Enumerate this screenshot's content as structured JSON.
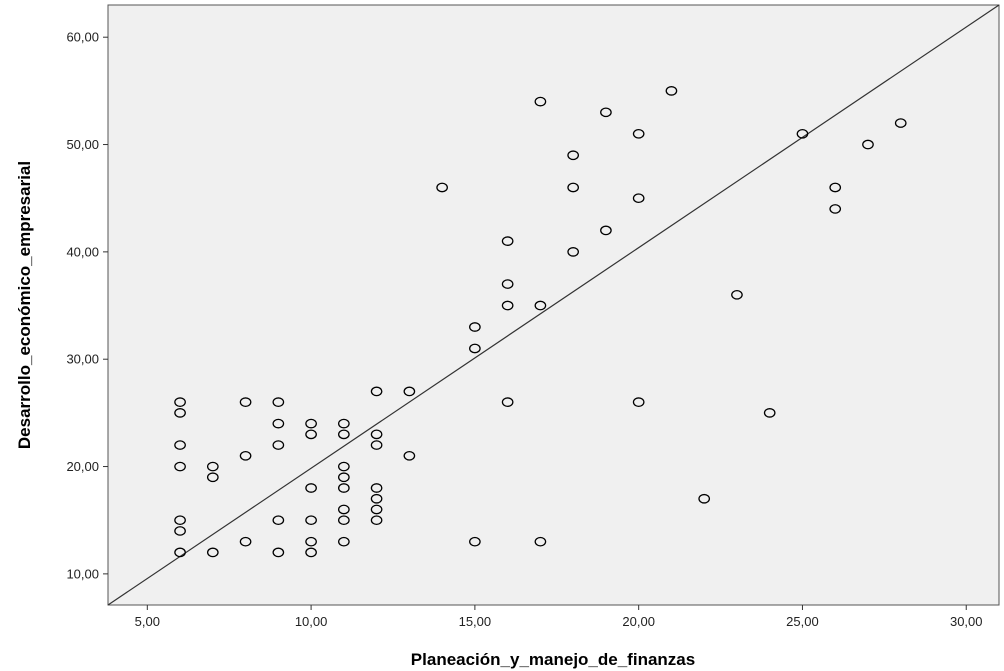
{
  "chart_data": {
    "type": "scatter",
    "title": "",
    "xlabel": "Planeación_y_manejo_de_finanzas",
    "ylabel": "Desarrollo_económico_empresarial",
    "xlim": [
      3.8,
      31.0
    ],
    "ylim": [
      7.1,
      63.0
    ],
    "x_ticks": [
      5,
      10,
      15,
      20,
      25,
      30
    ],
    "y_ticks": [
      10,
      20,
      30,
      40,
      50,
      60
    ],
    "x_tick_labels": [
      "5,00",
      "10,00",
      "15,00",
      "20,00",
      "25,00",
      "30,00"
    ],
    "y_tick_labels": [
      "10,00",
      "20,00",
      "30,00",
      "40,00",
      "50,00",
      "60,00"
    ],
    "grid": false,
    "plot_background": "#f0f0f0",
    "marker": "open-circle",
    "marker_color": "#000000",
    "fit_line": {
      "x": [
        3.8,
        31.0
      ],
      "y": [
        7.1,
        63.0
      ]
    },
    "points": [
      [
        6,
        26
      ],
      [
        6,
        25
      ],
      [
        6,
        22
      ],
      [
        6,
        20
      ],
      [
        6,
        15
      ],
      [
        6,
        14
      ],
      [
        6,
        12
      ],
      [
        7,
        20
      ],
      [
        7,
        19
      ],
      [
        7,
        12
      ],
      [
        8,
        26
      ],
      [
        8,
        21
      ],
      [
        8,
        13
      ],
      [
        9,
        26
      ],
      [
        9,
        24
      ],
      [
        9,
        22
      ],
      [
        9,
        15
      ],
      [
        9,
        12
      ],
      [
        10,
        24
      ],
      [
        10,
        23
      ],
      [
        10,
        18
      ],
      [
        10,
        15
      ],
      [
        10,
        13
      ],
      [
        10,
        12
      ],
      [
        11,
        24
      ],
      [
        11,
        23
      ],
      [
        11,
        20
      ],
      [
        11,
        19
      ],
      [
        11,
        18
      ],
      [
        11,
        16
      ],
      [
        11,
        15
      ],
      [
        11,
        13
      ],
      [
        12,
        27
      ],
      [
        12,
        23
      ],
      [
        12,
        22
      ],
      [
        12,
        18
      ],
      [
        12,
        17
      ],
      [
        12,
        16
      ],
      [
        12,
        15
      ],
      [
        13,
        27
      ],
      [
        13,
        21
      ],
      [
        14,
        46
      ],
      [
        15,
        33
      ],
      [
        15,
        31
      ],
      [
        15,
        13
      ],
      [
        16,
        41
      ],
      [
        16,
        37
      ],
      [
        16,
        35
      ],
      [
        16,
        26
      ],
      [
        17,
        54
      ],
      [
        17,
        35
      ],
      [
        17,
        13
      ],
      [
        18,
        49
      ],
      [
        18,
        46
      ],
      [
        18,
        40
      ],
      [
        19,
        53
      ],
      [
        19,
        42
      ],
      [
        20,
        51
      ],
      [
        20,
        45
      ],
      [
        20,
        26
      ],
      [
        21,
        55
      ],
      [
        22,
        17
      ],
      [
        23,
        36
      ],
      [
        24,
        25
      ],
      [
        25,
        51
      ],
      [
        26,
        46
      ],
      [
        26,
        44
      ],
      [
        27,
        50
      ],
      [
        28,
        52
      ]
    ]
  }
}
